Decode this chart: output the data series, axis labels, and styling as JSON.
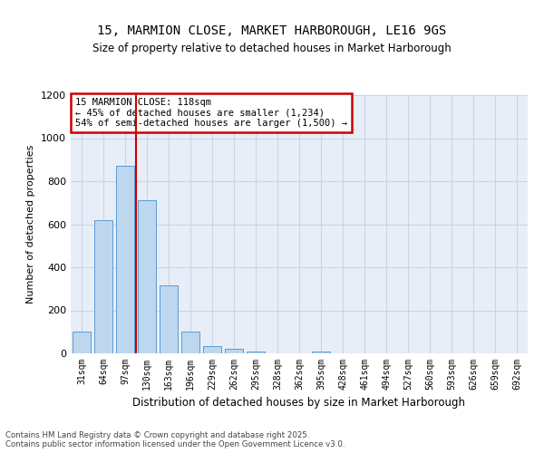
{
  "title": "15, MARMION CLOSE, MARKET HARBOROUGH, LE16 9GS",
  "subtitle": "Size of property relative to detached houses in Market Harborough",
  "xlabel": "Distribution of detached houses by size in Market Harborough",
  "ylabel": "Number of detached properties",
  "bar_values": [
    100,
    620,
    870,
    710,
    315,
    100,
    35,
    20,
    10,
    0,
    0,
    10,
    0,
    0,
    0,
    0,
    0,
    0,
    0,
    0,
    0
  ],
  "categories": [
    "31sqm",
    "64sqm",
    "97sqm",
    "130sqm",
    "163sqm",
    "196sqm",
    "229sqm",
    "262sqm",
    "295sqm",
    "328sqm",
    "362sqm",
    "395sqm",
    "428sqm",
    "461sqm",
    "494sqm",
    "527sqm",
    "560sqm",
    "593sqm",
    "626sqm",
    "659sqm",
    "692sqm"
  ],
  "bar_color": "#bdd7ee",
  "bar_edge_color": "#5b9bd5",
  "vline_color": "#cc0000",
  "vline_x": 2.5,
  "annotation_text": "15 MARMION CLOSE: 118sqm\n← 45% of detached houses are smaller (1,234)\n54% of semi-detached houses are larger (1,500) →",
  "annotation_box_color": "#ffffff",
  "annotation_edge_color": "#cc0000",
  "ylim": [
    0,
    1200
  ],
  "yticks": [
    0,
    200,
    400,
    600,
    800,
    1000,
    1200
  ],
  "grid_color": "#c8d4e8",
  "background_color": "#e8eef8",
  "footer_line1": "Contains HM Land Registry data © Crown copyright and database right 2025.",
  "footer_line2": "Contains public sector information licensed under the Open Government Licence v3.0."
}
